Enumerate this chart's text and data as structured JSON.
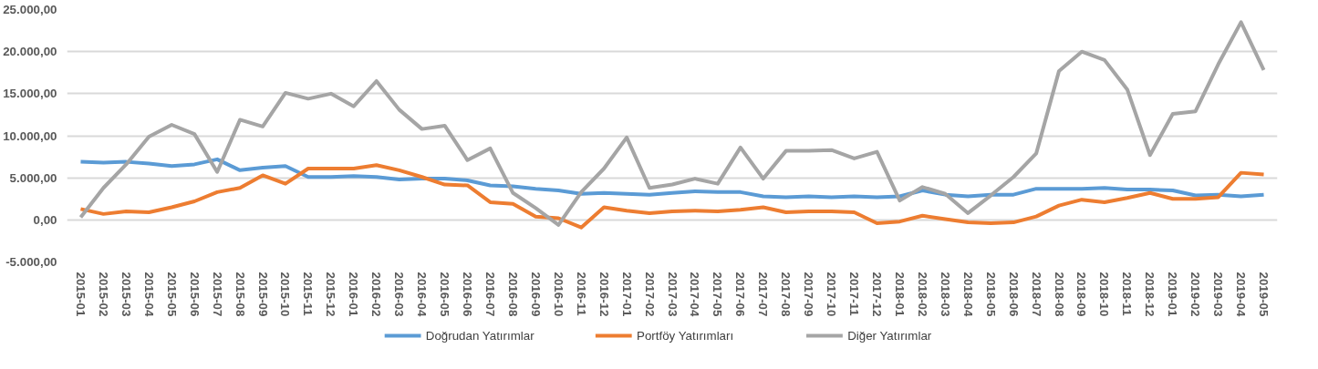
{
  "chart_data": {
    "type": "line",
    "categories": [
      "2015-01",
      "2015-02",
      "2015-03",
      "2015-04",
      "2015-05",
      "2015-06",
      "2015-07",
      "2015-08",
      "2015-09",
      "2015-10",
      "2015-11",
      "2015-12",
      "2016-01",
      "2016-02",
      "2016-03",
      "2016-04",
      "2016-05",
      "2016-06",
      "2016-07",
      "2016-08",
      "2016-09",
      "2016-10",
      "2016-11",
      "2016-12",
      "2017-01",
      "2017-02",
      "2017-03",
      "2017-04",
      "2017-05",
      "2017-06",
      "2017-07",
      "2017-08",
      "2017-09",
      "2017-10",
      "2017-11",
      "2017-12",
      "2018-01",
      "2018-02",
      "2018-03",
      "2018-04",
      "2018-05",
      "2018-06",
      "2018-07",
      "2018-08",
      "2018-09",
      "2018-10",
      "2018-11",
      "2018-12",
      "2019-01",
      "2019-02",
      "2019-03",
      "2019-04",
      "2019-05"
    ],
    "series": [
      {
        "name": "Doğrudan Yatırımlar",
        "color": "#5b9bd5",
        "values": [
          6900,
          6800,
          6900,
          6700,
          6400,
          6600,
          7200,
          5900,
          6200,
          6400,
          5100,
          5100,
          5200,
          5100,
          4800,
          4900,
          4900,
          4700,
          4100,
          4000,
          3700,
          3500,
          3100,
          3200,
          3100,
          3000,
          3200,
          3400,
          3300,
          3300,
          2800,
          2700,
          2800,
          2700,
          2800,
          2700,
          2800,
          3500,
          3000,
          2800,
          3000,
          3000,
          3700,
          3700,
          3700,
          3800,
          3600,
          3600,
          3500,
          2900,
          3000,
          2800,
          3000
        ]
      },
      {
        "name": "Portföy Yatırımları",
        "color": "#ed7d31",
        "values": [
          1300,
          700,
          1000,
          900,
          1500,
          2200,
          3300,
          3800,
          5300,
          4300,
          6100,
          6100,
          6100,
          6500,
          5900,
          5100,
          4200,
          4100,
          2100,
          1900,
          400,
          200,
          -900,
          1500,
          1100,
          800,
          1000,
          1100,
          1000,
          1200,
          1500,
          900,
          1000,
          1000,
          900,
          -400,
          -200,
          500,
          100,
          -300,
          -400,
          -300,
          400,
          1700,
          2400,
          2100,
          2600,
          3200,
          2500,
          2500,
          2700,
          5600,
          5400
        ]
      },
      {
        "name": "Diğer Yatırımlar",
        "color": "#a5a5a5",
        "values": [
          300,
          3800,
          6600,
          9900,
          11300,
          10200,
          5700,
          11900,
          11100,
          15100,
          14400,
          15000,
          13500,
          16500,
          13100,
          10800,
          11200,
          7100,
          8500,
          3200,
          1400,
          -600,
          3300,
          6100,
          9800,
          3800,
          4200,
          4900,
          4300,
          8600,
          4900,
          8200,
          8200,
          8300,
          7300,
          8100,
          2300,
          3900,
          3100,
          800,
          2900,
          5100,
          7900,
          17700,
          20000,
          19000,
          15500,
          7700,
          12600,
          12900,
          18500,
          23500,
          17800
        ]
      }
    ],
    "ylim": [
      -5000,
      25000
    ],
    "yticks": [
      {
        "value": -5000,
        "label": "-5.000,00"
      },
      {
        "value": 0,
        "label": "0,00"
      },
      {
        "value": 5000,
        "label": "5.000,00"
      },
      {
        "value": 10000,
        "label": "10.000,00"
      },
      {
        "value": 15000,
        "label": "15.000,00"
      },
      {
        "value": 20000,
        "label": "20.000,00"
      },
      {
        "value": 25000,
        "label": "25.000,00"
      }
    ],
    "grid": "y",
    "legend": "bottom",
    "line_style": "solid",
    "marker": "none"
  }
}
